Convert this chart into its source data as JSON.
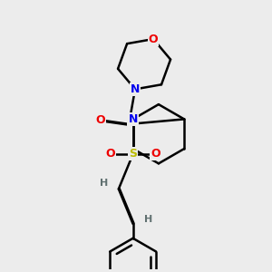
{
  "bg_color": "#ececec",
  "atom_colors": {
    "C": "#000000",
    "N": "#0000ee",
    "O": "#ee0000",
    "S": "#bbbb00",
    "H": "#607070"
  },
  "line_color": "#000000",
  "lw": 1.8
}
